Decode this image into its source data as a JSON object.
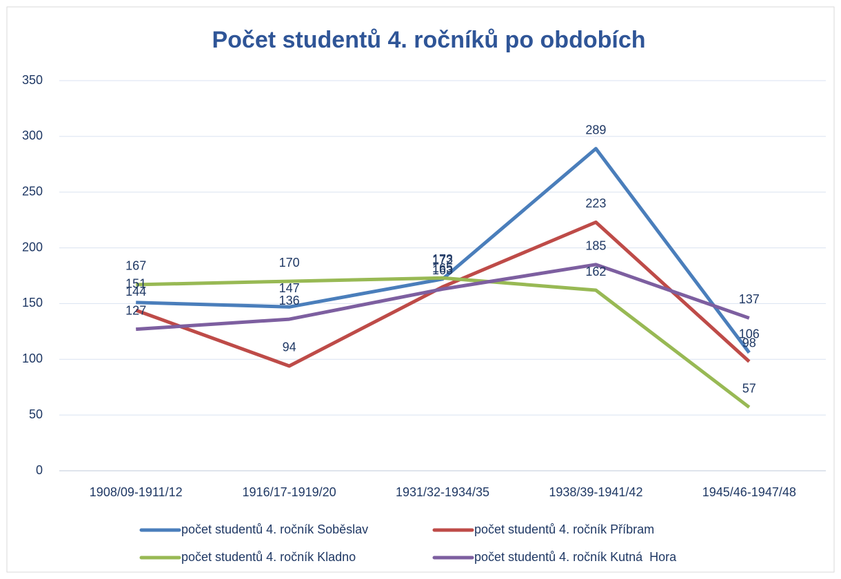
{
  "chart_data": {
    "type": "line",
    "title": "Počet studentů 4. ročníků po obdobích",
    "categories": [
      "1908/09-1911/12",
      "1916/17-1919/20",
      "1931/32-1934/35",
      "1938/39-1941/42",
      "1945/46-1947/48"
    ],
    "series": [
      {
        "name": "počet studentů 4. ročník Soběslav",
        "color": "#4a7ebb",
        "values": [
          151,
          147,
          172,
          289,
          106
        ]
      },
      {
        "name": "počet studentů 4. ročník Příbram",
        "color": "#be4b48",
        "values": [
          144,
          94,
          165,
          223,
          98
        ]
      },
      {
        "name": "počet studentů 4. ročník Kladno",
        "color": "#98b954",
        "values": [
          167,
          170,
          173,
          162,
          57
        ]
      },
      {
        "name": "počet studentů 4. ročník Kutná  Hora",
        "color": "#7d5fa0",
        "values": [
          127,
          136,
          163,
          185,
          137
        ]
      }
    ],
    "ylim": [
      0,
      350
    ],
    "yticks": [
      0,
      50,
      100,
      150,
      200,
      250,
      300,
      350
    ],
    "grid": true,
    "legend": "bottom"
  }
}
